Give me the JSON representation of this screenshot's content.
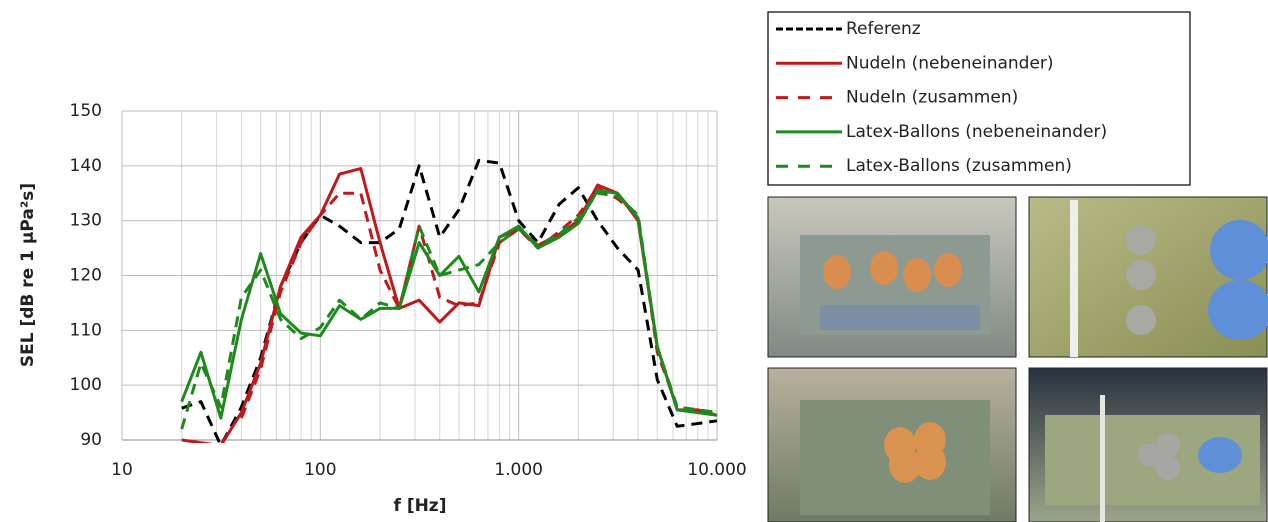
{
  "chart_data": {
    "type": "line",
    "x_label": "f [Hz]",
    "y_label": "SEL [dB re 1 µPa²s]",
    "x": [
      20,
      25,
      31.5,
      40,
      50,
      63,
      80,
      100,
      125,
      160,
      200,
      250,
      315,
      400,
      500,
      630,
      800,
      1000,
      1250,
      1600,
      2000,
      2500,
      3150,
      4000,
      5000,
      6300,
      8000,
      10000
    ],
    "xlim": [
      10,
      10000
    ],
    "xscale": "log",
    "xticks": [
      10,
      100,
      {
        "value": 1000,
        "label": "1.000"
      },
      {
        "value": 10000,
        "label": "10.000"
      }
    ],
    "ylim": [
      90,
      150
    ],
    "yticks": [
      90,
      100,
      110,
      120,
      130,
      140,
      150
    ],
    "grid": true,
    "minor_grid": true,
    "legend": "top-right",
    "series": [
      {
        "name": "Referenz",
        "color": "#000000",
        "line_style": "dashed",
        "values": [
          95.8,
          97,
          89,
          96,
          105,
          118,
          126,
          131,
          129,
          126,
          126,
          128.5,
          140,
          127,
          132,
          141,
          140.5,
          130,
          126,
          133,
          136,
          130,
          125,
          121,
          101,
          92.5,
          93,
          93.5
        ]
      },
      {
        "name": "Nudeln (nebeneinander)",
        "color": "#c0191c",
        "line_style": "solid",
        "values": [
          90,
          89.5,
          89,
          95,
          104,
          118,
          127,
          131,
          138.5,
          139.5,
          126,
          114,
          115.5,
          111.5,
          115,
          114.5,
          127,
          128.5,
          125.5,
          127.5,
          130,
          136.5,
          135,
          130,
          107,
          95.5,
          95.5,
          94.5
        ]
      },
      {
        "name": "Nudeln (zusammen)",
        "color": "#c0191c",
        "line_style": "dashed",
        "values": [
          null,
          null,
          null,
          94,
          103,
          117,
          126,
          131,
          135,
          135,
          121,
          114,
          129,
          116,
          114.5,
          115,
          126,
          128.5,
          125,
          128,
          131,
          136,
          134,
          131,
          106,
          96,
          95.5,
          95
        ]
      },
      {
        "name": "Latex-Ballons (nebeneinander)",
        "color": "#1e8a1e",
        "line_style": "solid",
        "values": [
          97,
          106,
          94,
          112,
          124,
          113,
          109.5,
          109,
          114.5,
          112,
          114,
          114,
          126,
          120,
          123.5,
          117,
          127,
          129,
          125,
          127,
          129.5,
          135.5,
          135,
          130.5,
          107,
          95.5,
          95,
          94.5
        ]
      },
      {
        "name": "Latex-Ballons (zusammen)",
        "color": "#1e8a1e",
        "line_style": "dashed",
        "values": [
          92,
          104,
          96,
          116,
          121,
          112,
          108.5,
          110.5,
          115.5,
          112,
          115,
          114,
          129,
          120,
          121,
          122,
          126,
          128.5,
          125.5,
          127.5,
          130.5,
          135,
          134.5,
          131,
          107,
          96,
          95.5,
          95
        ]
      }
    ]
  }
}
